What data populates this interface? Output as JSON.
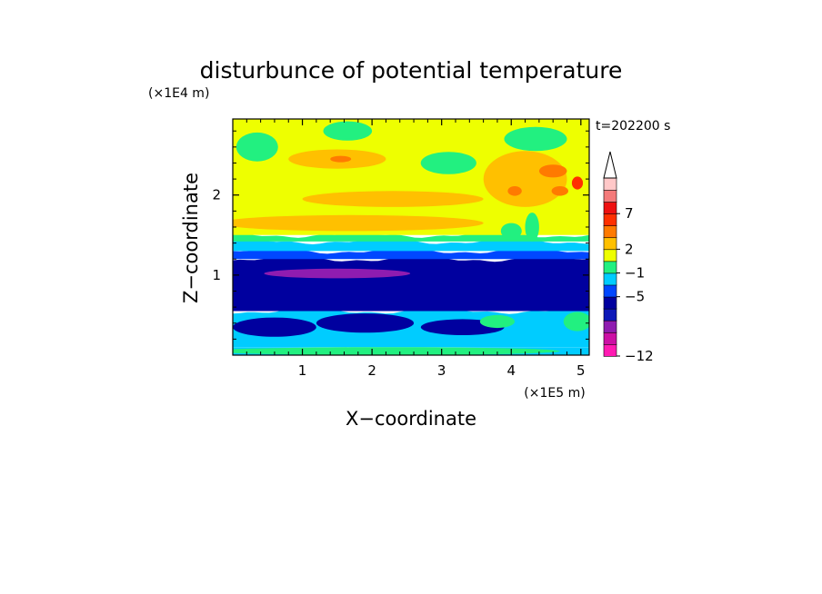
{
  "chart_data": {
    "type": "heatmap",
    "title": "disturbunce of potential temperature",
    "xlabel": "X−coordinate",
    "ylabel": "Z−coordinate",
    "x_unit": "(×1E5 m)",
    "y_unit": "(×1E4 m)",
    "time_label": "t=202200 s",
    "xlim": [
      0,
      5.12
    ],
    "ylim": [
      0,
      2.95
    ],
    "x_ticks": [
      "1",
      "2",
      "3",
      "4",
      "5"
    ],
    "y_ticks": [
      "1",
      "2"
    ],
    "colorbar": {
      "levels": [
        {
          "color": "#ff1ab2"
        },
        {
          "color": "#cc10a4"
        },
        {
          "color": "#8f1cb0"
        },
        {
          "color": "#0d18b8"
        },
        {
          "color": "#00009f"
        },
        {
          "color": "#0047ff"
        },
        {
          "color": "#00ccff"
        },
        {
          "color": "#22f080"
        },
        {
          "color": "#eeff00"
        },
        {
          "color": "#ffc000"
        },
        {
          "color": "#ff7a00"
        },
        {
          "color": "#ff3000"
        },
        {
          "color": "#ee1010"
        },
        {
          "color": "#f47a7a"
        },
        {
          "color": "#ffc8c8"
        }
      ],
      "labels": [
        {
          "value": "−12",
          "level": 0
        },
        {
          "value": "−5",
          "level": 5
        },
        {
          "value": "−1",
          "level": 7
        },
        {
          "value": "2",
          "level": 9
        },
        {
          "value": "7",
          "level": 12
        }
      ]
    },
    "bands": [
      {
        "z0": 0.0,
        "z1": 0.1,
        "color": "#00ccff"
      },
      {
        "z0": 0.1,
        "z1": 0.55,
        "color": "#00ccff"
      },
      {
        "z0": 0.55,
        "z1": 1.2,
        "color": "#00009f"
      },
      {
        "z0": 1.2,
        "z1": 1.3,
        "color": "#0047ff"
      },
      {
        "z0": 1.3,
        "z1": 1.42,
        "color": "#00ccff"
      },
      {
        "z0": 1.42,
        "z1": 1.5,
        "color": "#22f080"
      },
      {
        "z0": 1.5,
        "z1": 2.95,
        "color": "#eeff00"
      }
    ],
    "features": [
      {
        "x": 1.5,
        "z": 1.02,
        "rx": 1.05,
        "rz": 0.06,
        "color": "#8f1cb0"
      },
      {
        "x": 1.7,
        "z": 1.65,
        "rx": 1.9,
        "rz": 0.1,
        "color": "#ffc000"
      },
      {
        "x": 2.3,
        "z": 1.95,
        "rx": 1.3,
        "rz": 0.1,
        "color": "#ffc000"
      },
      {
        "x": 1.5,
        "z": 2.45,
        "rx": 0.7,
        "rz": 0.12,
        "color": "#ffc000"
      },
      {
        "x": 1.55,
        "z": 2.45,
        "rx": 0.15,
        "rz": 0.04,
        "color": "#ff7a00"
      },
      {
        "x": 0.35,
        "z": 2.6,
        "rx": 0.3,
        "rz": 0.18,
        "color": "#22f080"
      },
      {
        "x": 1.65,
        "z": 2.8,
        "rx": 0.35,
        "rz": 0.12,
        "color": "#22f080"
      },
      {
        "x": 3.1,
        "z": 2.4,
        "rx": 0.4,
        "rz": 0.14,
        "color": "#22f080"
      },
      {
        "x": 4.35,
        "z": 2.7,
        "rx": 0.45,
        "rz": 0.15,
        "color": "#22f080"
      },
      {
        "x": 4.2,
        "z": 2.2,
        "rx": 0.6,
        "rz": 0.35,
        "color": "#ffc000"
      },
      {
        "x": 4.6,
        "z": 2.3,
        "rx": 0.2,
        "rz": 0.08,
        "color": "#ff7a00"
      },
      {
        "x": 4.05,
        "z": 2.05,
        "rx": 0.1,
        "rz": 0.06,
        "color": "#ff7a00"
      },
      {
        "x": 4.95,
        "z": 2.15,
        "rx": 0.08,
        "rz": 0.08,
        "color": "#ff3000"
      },
      {
        "x": 4.7,
        "z": 2.05,
        "rx": 0.12,
        "rz": 0.06,
        "color": "#ff7a00"
      },
      {
        "x": 4.3,
        "z": 1.6,
        "rx": 0.1,
        "rz": 0.18,
        "color": "#22f080"
      },
      {
        "x": 4.0,
        "z": 1.55,
        "rx": 0.15,
        "rz": 0.1,
        "color": "#22f080"
      },
      {
        "x": 0.6,
        "z": 0.35,
        "rx": 0.6,
        "rz": 0.12,
        "color": "#00009f"
      },
      {
        "x": 1.9,
        "z": 0.4,
        "rx": 0.7,
        "rz": 0.12,
        "color": "#00009f"
      },
      {
        "x": 3.3,
        "z": 0.35,
        "rx": 0.6,
        "rz": 0.1,
        "color": "#00009f"
      },
      {
        "x": 4.95,
        "z": 0.42,
        "rx": 0.2,
        "rz": 0.12,
        "color": "#22f080"
      },
      {
        "x": 3.8,
        "z": 0.42,
        "rx": 0.25,
        "rz": 0.08,
        "color": "#22f080"
      },
      {
        "x": 2.2,
        "z": 0.05,
        "rx": 2.5,
        "rz": 0.05,
        "color": "#22f080"
      }
    ]
  }
}
